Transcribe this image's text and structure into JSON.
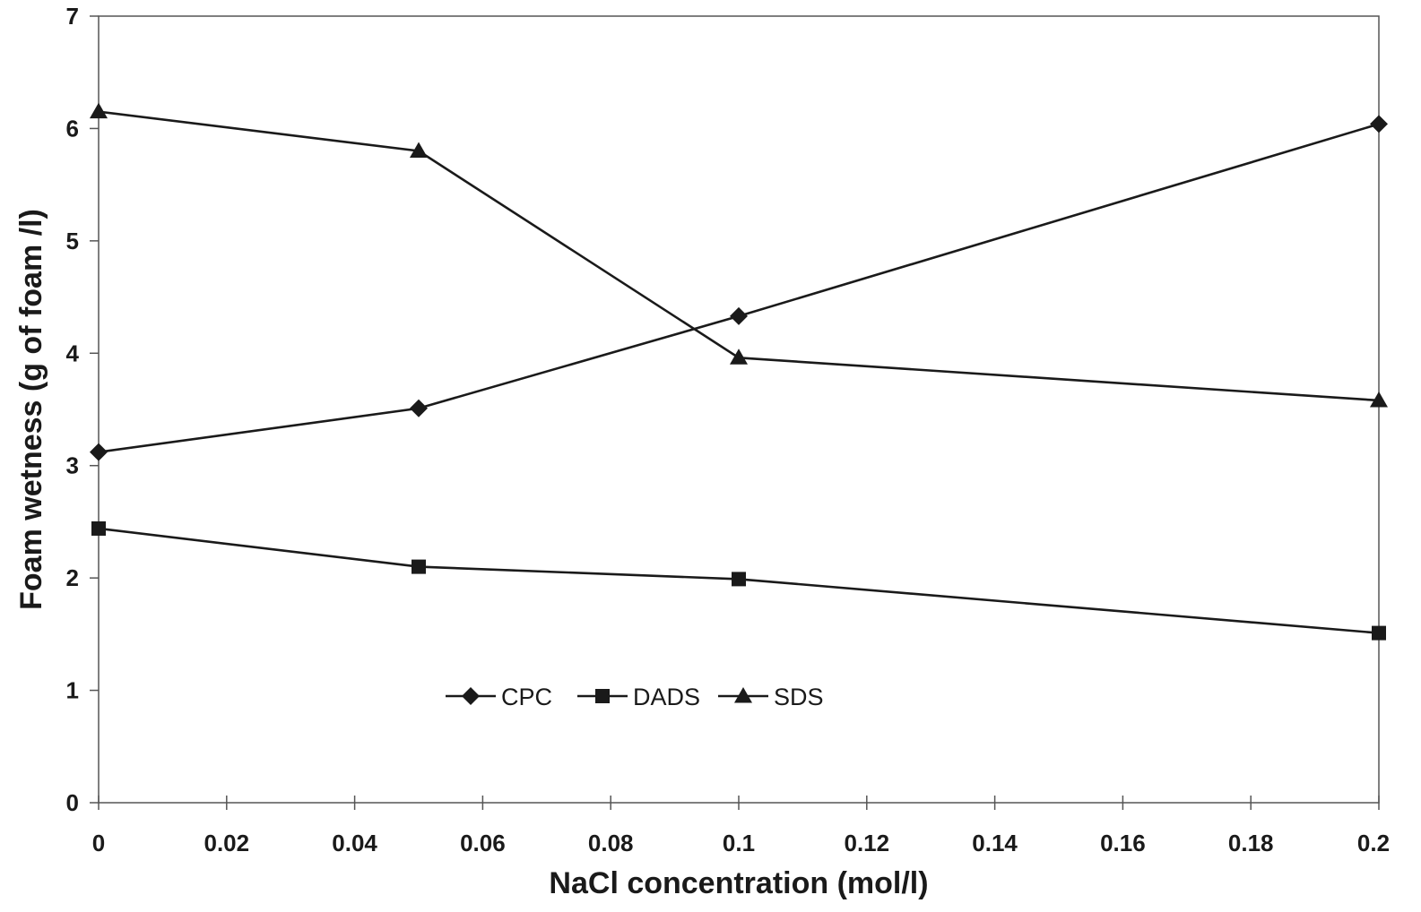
{
  "chart_data": {
    "type": "line",
    "xlabel": "NaCl concentration (mol/l)",
    "ylabel": "Foam wetness (g of foam /l)",
    "xlim": [
      0,
      0.2
    ],
    "ylim": [
      0,
      7
    ],
    "x_ticks": [
      "0",
      "0.02",
      "0.04",
      "0.06",
      "0.08",
      "0.1",
      "0.12",
      "0.14",
      "0.16",
      "0.18",
      "0.2"
    ],
    "y_ticks": [
      "0",
      "1",
      "2",
      "3",
      "4",
      "5",
      "6",
      "7"
    ],
    "grid": false,
    "legend_position": "center-bottom",
    "series": [
      {
        "name": "CPC",
        "marker": "diamond",
        "x": [
          0,
          0.05,
          0.1,
          0.2
        ],
        "y": [
          3.12,
          3.51,
          4.33,
          6.04
        ]
      },
      {
        "name": "DADS",
        "marker": "square",
        "x": [
          0,
          0.05,
          0.1,
          0.2
        ],
        "y": [
          2.44,
          2.1,
          1.99,
          1.51
        ]
      },
      {
        "name": "SDS",
        "marker": "triangle",
        "x": [
          0,
          0.05,
          0.1,
          0.2
        ],
        "y": [
          6.15,
          5.8,
          3.96,
          3.58
        ]
      }
    ],
    "colors": {
      "line": "#1a1a1a",
      "axis": "#555555"
    }
  }
}
